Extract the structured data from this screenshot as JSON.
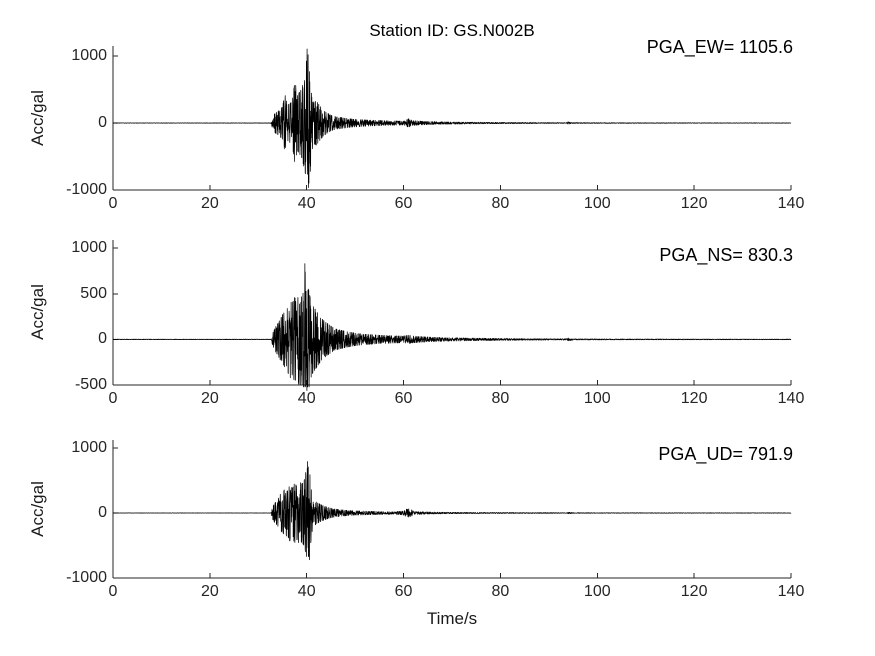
{
  "figure": {
    "title": "Station ID: GS.N002B",
    "xlabel": "Time/s",
    "background": "#ffffff",
    "axis_color": "#262626",
    "text_color": "#262626",
    "trace_color": "#000000"
  },
  "chart_data": [
    {
      "type": "line",
      "name": "EW",
      "ylabel": "Acc/gal",
      "annotation": "PGA_EW= 1105.6",
      "pga": 1105.6,
      "peak_time": 40.08,
      "trough": -965,
      "trough_time": 40.35,
      "xlim": [
        0,
        140
      ],
      "ylim": [
        -1000,
        1150
      ],
      "xticks": [
        0,
        20,
        40,
        60,
        80,
        100,
        120,
        140
      ],
      "yticks": [
        1000,
        0,
        -1000
      ],
      "seed": 7,
      "envelope": [
        [
          0,
          2.5
        ],
        [
          32.6,
          2.5
        ],
        [
          33,
          90
        ],
        [
          33.5,
          150
        ],
        [
          34,
          170
        ],
        [
          35,
          240
        ],
        [
          35.5,
          430
        ],
        [
          36,
          260
        ],
        [
          37,
          320
        ],
        [
          37.6,
          640
        ],
        [
          38,
          400
        ],
        [
          39,
          520
        ],
        [
          39.8,
          780
        ],
        [
          40.1,
          1100
        ],
        [
          40.6,
          880
        ],
        [
          41,
          430
        ],
        [
          41.5,
          310
        ],
        [
          42,
          330
        ],
        [
          43,
          230
        ],
        [
          44,
          160
        ],
        [
          45,
          115
        ],
        [
          46,
          92
        ],
        [
          48,
          72
        ],
        [
          50,
          56
        ],
        [
          52,
          46
        ],
        [
          55,
          38
        ],
        [
          58,
          31
        ],
        [
          60,
          28
        ],
        [
          61,
          62
        ],
        [
          61.6,
          46
        ],
        [
          62,
          36
        ],
        [
          64,
          26
        ],
        [
          66,
          21
        ],
        [
          70,
          15
        ],
        [
          75,
          11
        ],
        [
          80,
          9
        ],
        [
          85,
          7.5
        ],
        [
          90,
          6
        ],
        [
          93.6,
          5
        ],
        [
          94,
          18
        ],
        [
          94.6,
          6
        ],
        [
          100,
          5
        ],
        [
          110,
          4
        ],
        [
          120,
          3.5
        ],
        [
          130,
          3
        ],
        [
          140,
          3
        ]
      ]
    },
    {
      "type": "line",
      "name": "NS",
      "ylabel": "Acc/gal",
      "annotation": "PGA_NS= 830.3",
      "pga": 830.3,
      "peak_time": 39.62,
      "trough": -560,
      "trough_time": 40.05,
      "xlim": [
        0,
        140
      ],
      "ylim": [
        -500,
        1090
      ],
      "xticks": [
        0,
        20,
        40,
        60,
        80,
        100,
        120,
        140
      ],
      "yticks": [
        1000,
        500,
        0,
        -500
      ],
      "seed": 13,
      "envelope": [
        [
          0,
          2.5
        ],
        [
          32.6,
          2.5
        ],
        [
          33,
          70
        ],
        [
          33.5,
          130
        ],
        [
          34,
          170
        ],
        [
          35,
          270
        ],
        [
          36,
          340
        ],
        [
          36.5,
          430
        ],
        [
          37,
          390
        ],
        [
          37.5,
          460
        ],
        [
          38,
          430
        ],
        [
          38.5,
          510
        ],
        [
          39,
          460
        ],
        [
          39.6,
          820
        ],
        [
          40,
          520
        ],
        [
          40.4,
          555
        ],
        [
          41,
          390
        ],
        [
          42,
          310
        ],
        [
          43,
          230
        ],
        [
          44,
          185
        ],
        [
          45,
          145
        ],
        [
          46,
          115
        ],
        [
          48,
          88
        ],
        [
          50,
          68
        ],
        [
          52,
          56
        ],
        [
          55,
          46
        ],
        [
          58,
          39
        ],
        [
          60,
          36
        ],
        [
          61,
          46
        ],
        [
          62,
          36
        ],
        [
          64,
          29
        ],
        [
          66,
          23
        ],
        [
          70,
          17
        ],
        [
          75,
          13
        ],
        [
          80,
          10
        ],
        [
          85,
          8
        ],
        [
          90,
          7
        ],
        [
          93.6,
          6
        ],
        [
          94,
          15
        ],
        [
          95,
          6
        ],
        [
          100,
          5
        ],
        [
          110,
          4
        ],
        [
          120,
          3.5
        ],
        [
          130,
          3
        ],
        [
          140,
          3
        ]
      ]
    },
    {
      "type": "line",
      "name": "UD",
      "ylabel": "Acc/gal",
      "annotation": "PGA_UD= 791.9",
      "pga": 791.9,
      "peak_time": 40.18,
      "trough": -720,
      "trough_time": 40.55,
      "xlim": [
        0,
        140
      ],
      "ylim": [
        -1000,
        1123
      ],
      "xticks": [
        0,
        20,
        40,
        60,
        80,
        100,
        120,
        140
      ],
      "yticks": [
        1000,
        0,
        -1000
      ],
      "seed": 21,
      "envelope": [
        [
          0,
          2
        ],
        [
          32.6,
          2
        ],
        [
          33,
          100
        ],
        [
          33.5,
          160
        ],
        [
          34,
          190
        ],
        [
          34.5,
          310
        ],
        [
          35,
          270
        ],
        [
          35.5,
          390
        ],
        [
          36,
          330
        ],
        [
          36.5,
          430
        ],
        [
          37,
          370
        ],
        [
          37.5,
          460
        ],
        [
          38,
          410
        ],
        [
          38.5,
          490
        ],
        [
          39,
          440
        ],
        [
          39.5,
          510
        ],
        [
          40.2,
          780
        ],
        [
          40.6,
          690
        ],
        [
          41,
          310
        ],
        [
          41.5,
          210
        ],
        [
          42,
          165
        ],
        [
          43,
          125
        ],
        [
          44,
          95
        ],
        [
          45,
          72
        ],
        [
          46,
          58
        ],
        [
          48,
          42
        ],
        [
          50,
          33
        ],
        [
          52,
          27
        ],
        [
          55,
          22
        ],
        [
          58,
          18
        ],
        [
          60,
          30
        ],
        [
          60.6,
          58
        ],
        [
          61,
          62
        ],
        [
          61.6,
          52
        ],
        [
          62,
          28
        ],
        [
          64,
          17
        ],
        [
          66,
          13
        ],
        [
          70,
          10
        ],
        [
          75,
          8
        ],
        [
          80,
          7
        ],
        [
          85,
          6
        ],
        [
          90,
          5
        ],
        [
          93.6,
          4.5
        ],
        [
          94,
          12
        ],
        [
          95,
          5
        ],
        [
          100,
          4
        ],
        [
          110,
          3.5
        ],
        [
          120,
          3
        ],
        [
          130,
          3
        ],
        [
          140,
          3
        ]
      ]
    }
  ]
}
